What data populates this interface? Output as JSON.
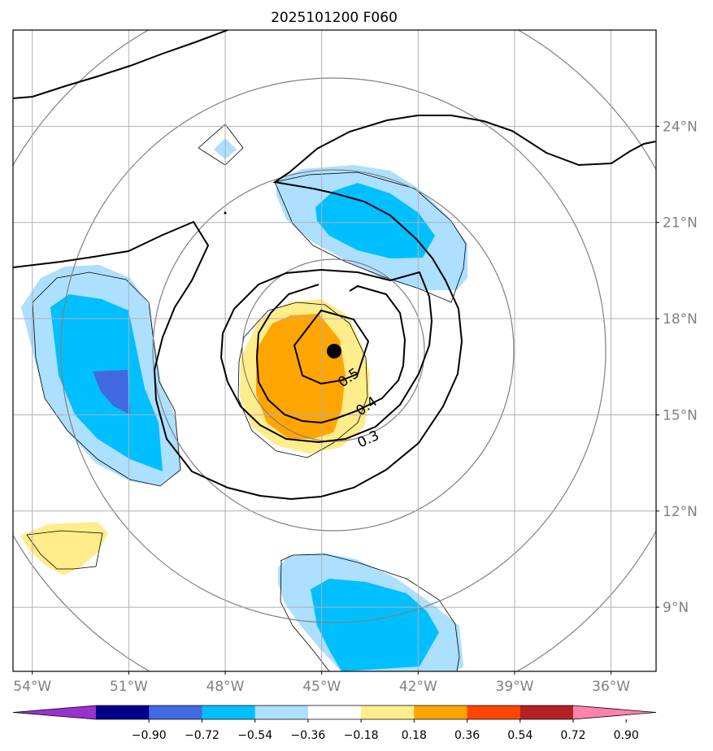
{
  "title": "2025101200 F060",
  "axes": {
    "lon_ticks": [
      "54°W",
      "51°W",
      "48°W",
      "45°W",
      "42°W",
      "39°W",
      "36°W"
    ],
    "lat_ticks": [
      "24°N",
      "21°N",
      "18°N",
      "15°N",
      "12°N",
      "9°N"
    ],
    "lon_range": [
      -54.6,
      -34.6
    ],
    "lat_range": [
      7.0,
      27.0
    ],
    "grid": true,
    "lat_ticks_position": "right"
  },
  "contour_labels": [
    "0.5",
    "0.4",
    "0.3"
  ],
  "colorbar": {
    "ticks": [
      "−0.90",
      "−0.72",
      "−0.54",
      "−0.36",
      "−0.18",
      "0.18",
      "0.36",
      "0.54",
      "0.72",
      "0.90"
    ],
    "colors": [
      "#9932CC",
      "#00008B",
      "#4169E1",
      "#00BFFF",
      "#ADDFFF",
      "#FFFFFF",
      "#FFEC8B",
      "#FFA500",
      "#FF4500",
      "#B22222",
      "#FF82AB"
    ],
    "extend": "both",
    "orientation": "horizontal"
  },
  "storm_center": {
    "lon": -44.6,
    "lat": 16.7
  },
  "colors": {
    "orange": "#FFA500",
    "light_yellow": "#FFEC8B",
    "deep_sky_blue": "#00BFFF",
    "light_blue": "#ADDFFF",
    "royal_blue": "#4169E1",
    "range_rings": "#808080",
    "grid": "#b0b0b0"
  }
}
